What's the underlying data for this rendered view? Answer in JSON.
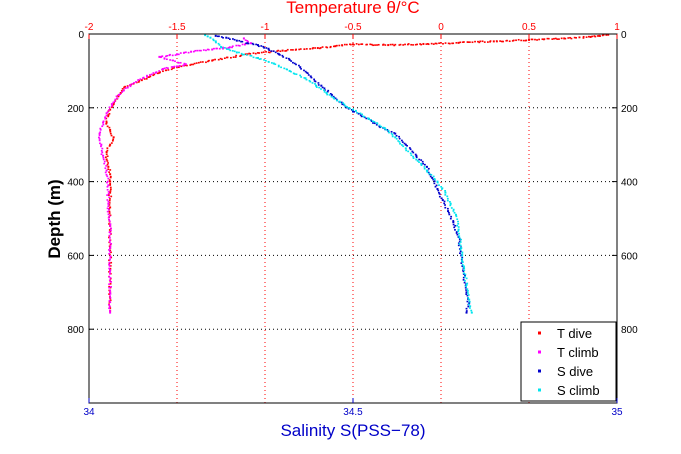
{
  "chart_data": {
    "type": "scatter",
    "title": "",
    "top_axis": {
      "label": "Temperature θ/°C",
      "range": [
        -2,
        1
      ],
      "ticks": [
        "-2",
        "-1.5",
        "-1",
        "-0.5",
        "0",
        "0.5",
        "1"
      ],
      "tick_values": [
        -2,
        -1.5,
        -1,
        -0.5,
        0,
        0.5,
        1
      ],
      "color": "#ff0000"
    },
    "bottom_axis": {
      "label": "Salinity S(PSS−78)",
      "range": [
        34,
        35
      ],
      "ticks": [
        "34",
        "34.5",
        "35"
      ],
      "tick_values": [
        34,
        34.5,
        35
      ],
      "color": "#0000c8"
    },
    "y_axis": {
      "label": "Depth (m)",
      "range": [
        0,
        1000
      ],
      "reversed": true,
      "ticks": [
        "0",
        "200",
        "400",
        "600",
        "800"
      ],
      "tick_values": [
        0,
        200,
        400,
        600,
        800
      ]
    },
    "grid": true,
    "legend": {
      "placement": "bottom-right",
      "entries": [
        {
          "name": "T dive",
          "color": "#ff0000"
        },
        {
          "name": "T climb",
          "color": "#ff00ff"
        },
        {
          "name": "S dive",
          "color": "#0000cc"
        },
        {
          "name": "S climb",
          "color": "#00e5ee"
        }
      ]
    },
    "series": [
      {
        "name": "T dive",
        "axis": "top",
        "color": "#ff0000",
        "points": [
          [
            0.95,
            2
          ],
          [
            0.9,
            5
          ],
          [
            0.85,
            8
          ],
          [
            0.7,
            12
          ],
          [
            0.5,
            16
          ],
          [
            0.3,
            20
          ],
          [
            0.1,
            24
          ],
          [
            -0.1,
            27
          ],
          [
            -0.3,
            30
          ],
          [
            -0.5,
            28
          ],
          [
            -0.6,
            33
          ],
          [
            -0.7,
            38
          ],
          [
            -0.9,
            45
          ],
          [
            -1.1,
            55
          ],
          [
            -1.3,
            72
          ],
          [
            -1.5,
            90
          ],
          [
            -1.6,
            105
          ],
          [
            -1.7,
            125
          ],
          [
            -1.8,
            145
          ],
          [
            -1.82,
            160
          ],
          [
            -1.84,
            175
          ],
          [
            -1.86,
            190
          ],
          [
            -1.88,
            205
          ],
          [
            -1.89,
            220
          ],
          [
            -1.9,
            240
          ],
          [
            -1.88,
            260
          ],
          [
            -1.86,
            280
          ],
          [
            -1.88,
            300
          ],
          [
            -1.9,
            320
          ],
          [
            -1.9,
            340
          ],
          [
            -1.89,
            360
          ],
          [
            -1.88,
            380
          ],
          [
            -1.88,
            400
          ],
          [
            -1.88,
            430
          ],
          [
            -1.88,
            470
          ],
          [
            -1.88,
            520
          ],
          [
            -1.88,
            580
          ],
          [
            -1.88,
            640
          ],
          [
            -1.88,
            700
          ],
          [
            -1.88,
            750
          ]
        ]
      },
      {
        "name": "T climb",
        "axis": "top",
        "color": "#ff00ff",
        "points": [
          [
            -1.88,
            755
          ],
          [
            -1.88,
            700
          ],
          [
            -1.88,
            640
          ],
          [
            -1.88,
            580
          ],
          [
            -1.88,
            520
          ],
          [
            -1.89,
            460
          ],
          [
            -1.89,
            410
          ],
          [
            -1.9,
            370
          ],
          [
            -1.92,
            330
          ],
          [
            -1.93,
            300
          ],
          [
            -1.94,
            270
          ],
          [
            -1.92,
            240
          ],
          [
            -1.9,
            215
          ],
          [
            -1.87,
            190
          ],
          [
            -1.83,
            165
          ],
          [
            -1.78,
            145
          ],
          [
            -1.72,
            125
          ],
          [
            -1.62,
            105
          ],
          [
            -1.58,
            95
          ],
          [
            -1.5,
            88
          ],
          [
            -1.45,
            82
          ],
          [
            -1.6,
            62
          ],
          [
            -1.5,
            55
          ],
          [
            -1.42,
            48
          ],
          [
            -1.3,
            42
          ],
          [
            -1.2,
            36
          ],
          [
            -1.08,
            25
          ],
          [
            -1.12,
            12
          ]
        ]
      },
      {
        "name": "S dive",
        "axis": "bottom",
        "color": "#0000cc",
        "points": [
          [
            34.24,
            5
          ],
          [
            34.26,
            10
          ],
          [
            34.28,
            18
          ],
          [
            34.3,
            25
          ],
          [
            34.32,
            30
          ],
          [
            34.34,
            40
          ],
          [
            34.36,
            55
          ],
          [
            34.38,
            70
          ],
          [
            34.4,
            90
          ],
          [
            34.42,
            115
          ],
          [
            34.44,
            140
          ],
          [
            34.46,
            165
          ],
          [
            34.48,
            190
          ],
          [
            34.5,
            210
          ],
          [
            34.53,
            230
          ],
          [
            34.55,
            250
          ],
          [
            34.58,
            270
          ],
          [
            34.6,
            300
          ],
          [
            34.62,
            330
          ],
          [
            34.64,
            360
          ],
          [
            34.65,
            390
          ],
          [
            34.66,
            420
          ],
          [
            34.67,
            450
          ],
          [
            34.68,
            480
          ],
          [
            34.69,
            510
          ],
          [
            34.7,
            550
          ],
          [
            34.705,
            600
          ],
          [
            34.71,
            650
          ],
          [
            34.715,
            700
          ],
          [
            34.72,
            730
          ],
          [
            34.715,
            755
          ]
        ]
      },
      {
        "name": "S climb",
        "axis": "bottom",
        "color": "#00e5ee",
        "points": [
          [
            34.725,
            755
          ],
          [
            34.72,
            720
          ],
          [
            34.715,
            680
          ],
          [
            34.71,
            630
          ],
          [
            34.705,
            580
          ],
          [
            34.7,
            530
          ],
          [
            34.695,
            490
          ],
          [
            34.685,
            460
          ],
          [
            34.675,
            430
          ],
          [
            34.66,
            400
          ],
          [
            34.64,
            370
          ],
          [
            34.62,
            340
          ],
          [
            34.6,
            310
          ],
          [
            34.58,
            280
          ],
          [
            34.56,
            255
          ],
          [
            34.53,
            230
          ],
          [
            34.5,
            205
          ],
          [
            34.47,
            180
          ],
          [
            34.45,
            160
          ],
          [
            34.43,
            140
          ],
          [
            34.41,
            120
          ],
          [
            34.38,
            100
          ],
          [
            34.35,
            80
          ],
          [
            34.32,
            65
          ],
          [
            34.28,
            50
          ],
          [
            34.25,
            35
          ],
          [
            34.24,
            20
          ],
          [
            34.23,
            10
          ],
          [
            34.22,
            3
          ]
        ]
      }
    ]
  }
}
